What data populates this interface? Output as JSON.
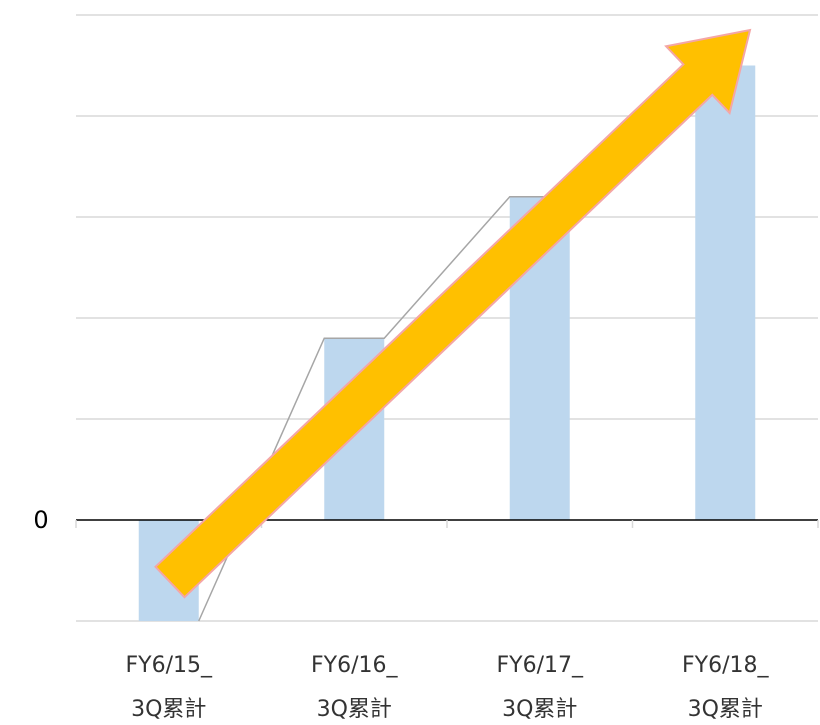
{
  "chart_data": {
    "type": "bar",
    "categories": [
      [
        "FY6/15_",
        "3Q累計"
      ],
      [
        "FY6/16_",
        "3Q累計"
      ],
      [
        "FY6/17_",
        "3Q累計"
      ],
      [
        "FY6/18_",
        "3Q累計"
      ]
    ],
    "series": [
      {
        "values": [
          -1.0,
          1.8,
          3.2,
          4.5
        ]
      }
    ],
    "y_tick_labels": [
      {
        "value": 0,
        "label": "0"
      }
    ],
    "gridlines": [
      -1,
      0,
      1,
      2,
      3,
      4,
      5
    ],
    "ylim": [
      -1.0,
      5.0
    ],
    "grid": true,
    "legend": "none",
    "connector_line": true,
    "trend_arrow": {
      "from_category": 0,
      "to_category": 3,
      "label": ""
    },
    "colors": {
      "bar": "#bdd7ee",
      "gridline": "#d9d9d9",
      "axis": "#000000",
      "connector": "#a6a6a6",
      "arrow_fill": "#ffc000",
      "arrow_stroke": "#f4a6a6"
    }
  }
}
